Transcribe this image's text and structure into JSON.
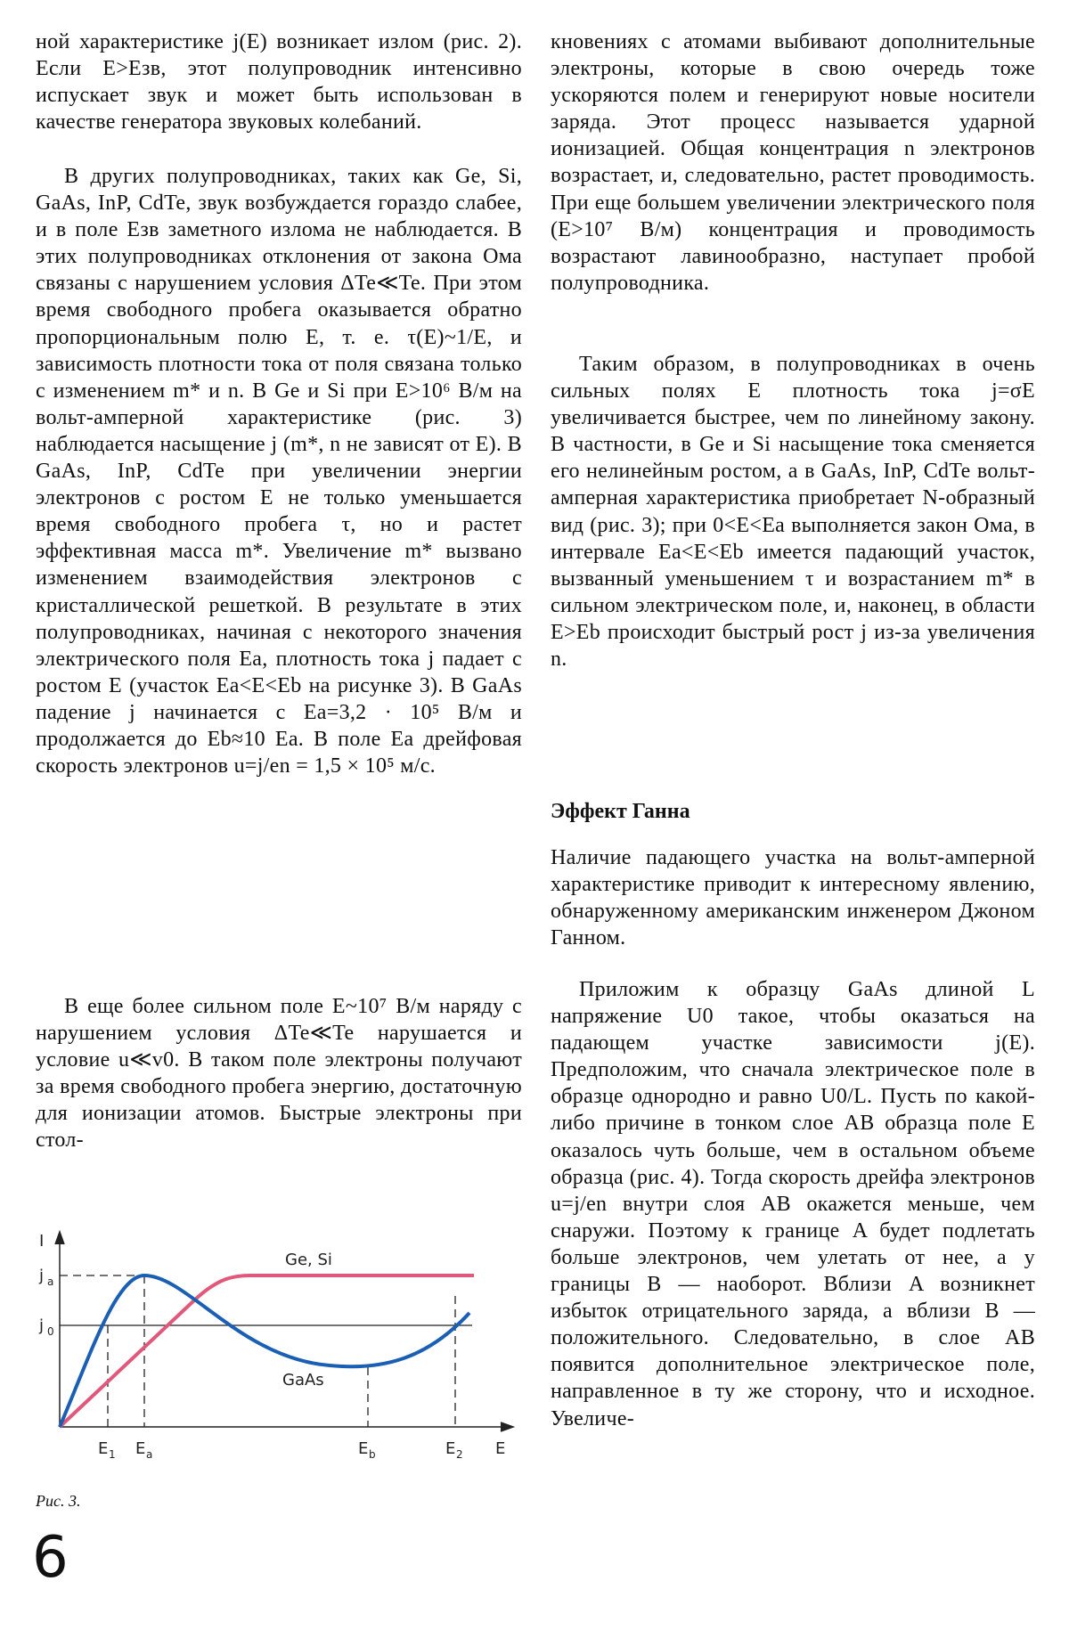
{
  "left_column": {
    "paragraphs": [
      "ной характеристике j(E) возникает излом (рис. 2). Если E>Eзв, этот полупроводник интенсивно испускает звук и может быть использован в качестве генератора звуковых колебаний.",
      "В других полупроводниках, таких как Ge, Si, GaAs, InP, CdTe, звук возбуждается гораздо слабее, и в поле Eзв заметного излома не наблюдается. В этих полупроводниках отклонения от закона Ома связаны с нарушением условия ΔTe≪Te. При этом время свободного пробега оказывается обратно пропорциональным полю E, т. е. τ(E)~1/E, и зависимость плотности тока от поля связана только с изменением m* и n. В Ge и Si при E>10⁶ В/м на вольт-амперной характеристике (рис. 3) наблюдается насыщение j (m*, n не зависят от E). В GaAs, InP, CdTe при увеличении энергии электронов с ростом E не только уменьшается время свободного пробега τ, но и растет эффективная масса m*. Увеличение m* вызвано изменением взаимодействия электронов с кристаллической решеткой. В результате в этих полупроводниках, начиная с некоторого значения электрического поля Ea, плотность тока j падает с ростом E (участок Ea<E<Eb на рисунке 3). В GaAs падение j начинается с Ea=3,2 · 10⁵ В/м и продолжается до Eb≈10 Ea. В поле Ea дрейфовая скорость электронов u=j/en = 1,5 × 10⁵ м/с.",
      "В еще более сильном поле E~10⁷ В/м наряду с нарушением условия ΔTe≪Te нарушается и условие u≪v0. В таком поле электроны получают за время свободного пробега энергию, достаточную для ионизации атомов. Быстрые электроны при стол-"
    ]
  },
  "figure": {
    "y_axis": "I",
    "x_axis": "E",
    "ja": {
      "base": "j",
      "sub": "a"
    },
    "j0": {
      "base": "j",
      "sub": "0"
    },
    "curve_ge_si": "Ge, Si",
    "curve_gaas": "GaAs",
    "e1": {
      "base": "E",
      "sub": "1"
    },
    "ea": {
      "base": "E",
      "sub": "a"
    },
    "eb": {
      "base": "E",
      "sub": "b"
    },
    "e2": {
      "base": "E",
      "sub": "2"
    },
    "caption": "Рис. 3."
  },
  "right_column": {
    "paragraphs": [
      "кновениях с атомами выбивают дополнительные электроны, которые в свою очередь тоже ускоряются полем и генерируют новые носители заряда. Этот процесс называется ударной ионизацией. Общая концентрация n электронов возрастает, и, следовательно, растет проводимость. При еще большем увеличении электрического поля (E>10⁷ В/м) концентрация и проводимость возрастают лавинообразно, наступает пробой полупроводника.",
      "Таким образом, в полупроводниках в очень сильных полях E плотность тока j=σE увеличивается быстрее, чем по линейному закону. В частности, в Ge и Si насыщение тока сменяется его нелинейным ростом, а в GaAs, InP, CdTe вольт-амперная характеристика приобретает N-образный вид (рис. 3); при 0<E<Ea выполняется закон Ома, в интервале Ea<E<Eb имеется падающий участок, вызванный уменьшением τ и возрастанием m* в сильном электрическом поле, и, наконец, в области E>Eb происходит быстрый рост j из-за увеличения n."
    ],
    "heading": "Эффект Ганна",
    "section_paragraphs": [
      "Наличие падающего участка на вольт-амперной характеристике приводит к интересному явлению, обнаруженному американским инженером Джоном Ганном.",
      "Приложим к образцу GaAs длиной L напряжение U0 такое, чтобы оказаться на падающем участке зависимости j(E). Предположим, что сначала электрическое поле в образце однородно и равно U0/L. Пусть по какой-либо причине в тонком слое AB образца поле E оказалось чуть больше, чем в остальном объеме образца (рис. 4). Тогда скорость дрейфа электронов u=j/en внутри слоя AB окажется меньше, чем снаружи. Поэтому к границе A будет подлетать больше электронов, чем улетать от нее, а у границы B — наоборот. Вблизи A возникнет избыток отрицательного заряда, а вблизи B — положительного. Следовательно, в слое AB появится дополнительное электрическое поле, направленное в ту же сторону, что и исходное. Увеличе-"
    ]
  },
  "page_number": "6"
}
